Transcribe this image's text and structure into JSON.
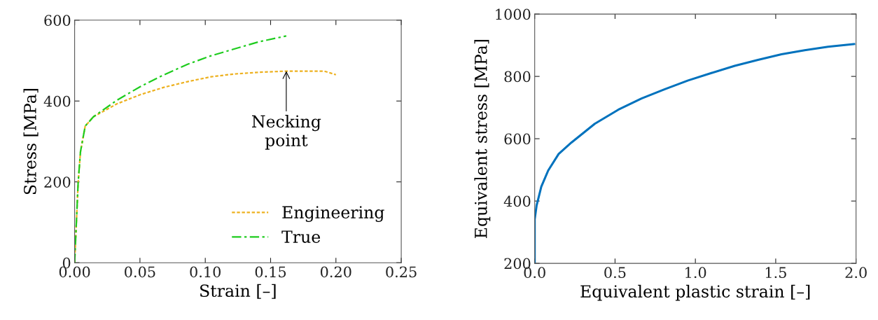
{
  "chart_data": [
    {
      "type": "line",
      "xlabel": "Strain [–]",
      "ylabel": "Stress [MPa]",
      "xlim": [
        0,
        0.25
      ],
      "ylim": [
        0,
        600
      ],
      "xticks": [
        {
          "value": 0,
          "label": "0.00"
        },
        {
          "value": 0.05,
          "label": "0.05"
        },
        {
          "value": 0.1,
          "label": "0.10"
        },
        {
          "value": 0.15,
          "label": "0.15"
        },
        {
          "value": 0.2,
          "label": "0.20"
        },
        {
          "value": 0.25,
          "label": "0.25"
        }
      ],
      "yticks": [
        0,
        200,
        400,
        600
      ],
      "grid": false,
      "legend": "bottom right",
      "annotations": [
        {
          "text": "Necking\npoint",
          "x": 0.162,
          "y": 474
        }
      ],
      "series": [
        {
          "name": "Engineering",
          "color": "#edb120",
          "line_style": "dotted",
          "x": [
            0,
            0.0027,
            0.0045,
            0.0081,
            0.0144,
            0.0324,
            0.0505,
            0.0685,
            0.0865,
            0.1045,
            0.1225,
            0.1405,
            0.162,
            0.177,
            0.191,
            0.2
          ],
          "values": [
            0,
            199,
            275,
            338,
            361,
            393,
            416,
            434,
            448,
            460,
            467,
            471,
            474,
            474,
            474,
            465
          ]
        },
        {
          "name": "True",
          "color": "#1ecc1e",
          "line_style": "dashdot",
          "x": [
            0,
            0.0027,
            0.0045,
            0.0081,
            0.0144,
            0.0324,
            0.0505,
            0.0685,
            0.0865,
            0.1045,
            0.1225,
            0.1405,
            0.162
          ],
          "values": [
            0,
            199,
            275,
            338,
            361,
            402,
            436,
            465,
            491,
            512,
            529,
            546,
            561
          ]
        }
      ]
    },
    {
      "type": "line",
      "xlabel": "Equivalent plastic strain [–]",
      "ylabel": "Equivalent stress [MPa]",
      "xlim": [
        0,
        2.0
      ],
      "ylim": [
        200,
        1000
      ],
      "xticks": [
        {
          "value": 0,
          "label": "0.0"
        },
        {
          "value": 0.5,
          "label": "0.5"
        },
        {
          "value": 1.0,
          "label": "1.0"
        },
        {
          "value": 1.5,
          "label": "1.5"
        },
        {
          "value": 2.0,
          "label": "2.0"
        }
      ],
      "yticks": [
        200,
        400,
        600,
        800,
        1000
      ],
      "grid": false,
      "series": [
        {
          "color": "#0072bd",
          "line_style": "solid",
          "x": [
            0,
            0,
            0.012,
            0.041,
            0.084,
            0.149,
            0.229,
            0.374,
            0.52,
            0.665,
            0.81,
            0.955,
            1.1,
            1.245,
            1.39,
            1.536,
            1.68,
            1.826,
            1.988
          ],
          "values": [
            200,
            341,
            386,
            446,
            498,
            551,
            588,
            648,
            693,
            729,
            759,
            787,
            811,
            834,
            853,
            871,
            884,
            895,
            904
          ]
        }
      ]
    }
  ]
}
